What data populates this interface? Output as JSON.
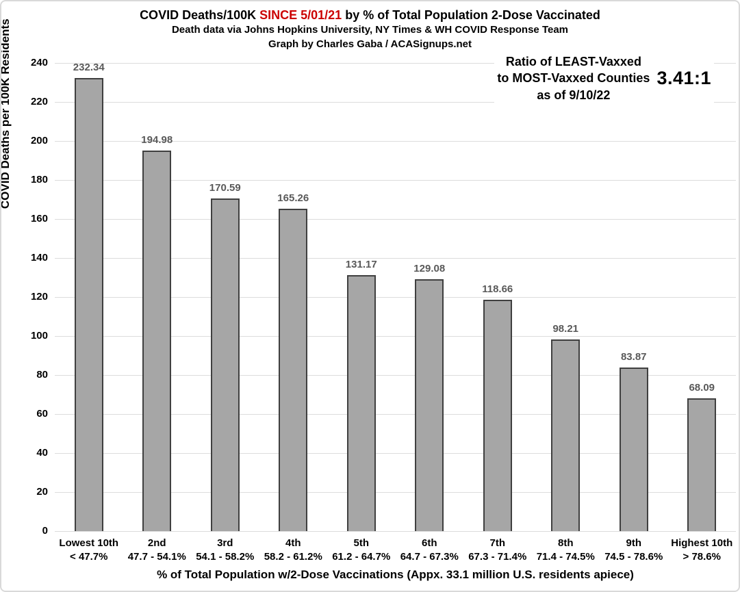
{
  "title": {
    "line1_prefix": "COVID Deaths/100K ",
    "line1_highlight": "SINCE 5/01/21",
    "line1_suffix": " by % of Total Population 2-Dose Vaccinated",
    "line2": "Death data via Johns Hopkins University, NY Times & WH COVID Response Team",
    "line3": "Graph by Charles Gaba / ACASignups.net",
    "highlight_color": "#cc0000"
  },
  "annotation": {
    "line1": "Ratio of LEAST-Vaxxed",
    "line2": "to MOST-Vaxxed Counties",
    "line3": "as of 9/10/22",
    "ratio_value": "3.41:1"
  },
  "chart_data": {
    "type": "bar",
    "title": "COVID Deaths/100K SINCE 5/01/21 by % of Total Population 2-Dose Vaccinated",
    "subtitle": "Death data via Johns Hopkins University, NY Times & WH COVID Response Team",
    "credit": "Graph by Charles Gaba / ACASignups.net",
    "categories": [
      "Lowest 10th",
      "2nd",
      "3rd",
      "4th",
      "5th",
      "6th",
      "7th",
      "8th",
      "9th",
      "Highest 10th"
    ],
    "category_ranges": [
      "< 47.7%",
      "47.7 - 54.1%",
      "54.1 - 58.2%",
      "58.2 - 61.2%",
      "61.2 - 64.7%",
      "64.7 - 67.3%",
      "67.3 - 71.4%",
      "71.4 - 74.5%",
      "74.5 - 78.6%",
      "> 78.6%"
    ],
    "values": [
      232.34,
      194.98,
      170.59,
      165.26,
      131.17,
      129.08,
      118.66,
      98.21,
      83.87,
      68.09
    ],
    "value_labels": [
      "232.34",
      "194.98",
      "170.59",
      "165.26",
      "131.17",
      "129.08",
      "118.66",
      "98.21",
      "83.87",
      "68.09"
    ],
    "xlabel": "% of Total Population w/2-Dose Vaccinations (Appx. 33.1 million U.S. residents apiece)",
    "ylabel": "COVID Deaths per 100K Residents",
    "ylim": [
      0,
      240
    ],
    "ytick_step": 20,
    "grid": "horizontal",
    "legend": "none",
    "bar_fill": "#a6a6a6",
    "bar_border": "#3f3f3f",
    "value_label_color": "#595959",
    "gridline_color": "#dcdcdc"
  }
}
